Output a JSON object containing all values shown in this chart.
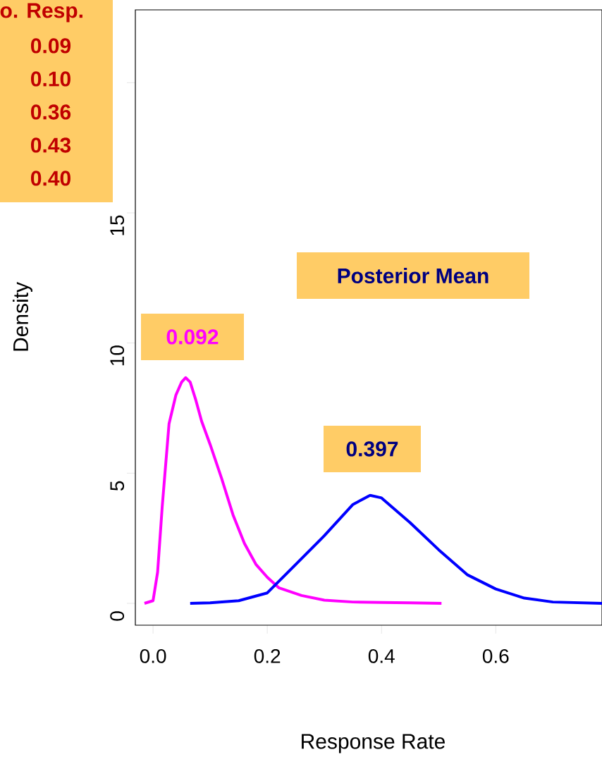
{
  "chart_data": {
    "type": "line",
    "xlabel": "Response Rate",
    "ylabel": "Density",
    "xlim": [
      -0.031,
      0.786
    ],
    "ylim": [
      -0.84,
      22.8
    ],
    "xticks": [
      {
        "value": 0,
        "label": "0.0"
      },
      0.2,
      0.4,
      0.6
    ],
    "yticks": [
      0,
      5,
      10,
      15,
      {
        "value": 20,
        "label": null
      }
    ],
    "series": [
      {
        "color": "#ff00ff",
        "x": [
          -0.015,
          0.0,
          0.008,
          0.016,
          0.028,
          0.04,
          0.05,
          0.057,
          0.065,
          0.075,
          0.085,
          0.1,
          0.12,
          0.14,
          0.16,
          0.18,
          0.2,
          0.22,
          0.26,
          0.3,
          0.35,
          0.4,
          0.45,
          0.505
        ],
        "values": [
          0,
          0.1,
          1.2,
          3.7,
          6.9,
          8.0,
          8.5,
          8.67,
          8.5,
          7.8,
          7.0,
          6.1,
          4.8,
          3.4,
          2.3,
          1.5,
          1.0,
          0.6,
          0.3,
          0.12,
          0.05,
          0.03,
          0.02,
          0
        ]
      },
      {
        "color": "#0000ff",
        "x": [
          0.065,
          0.1,
          0.15,
          0.2,
          0.25,
          0.3,
          0.35,
          0.38,
          0.4,
          0.45,
          0.5,
          0.55,
          0.6,
          0.65,
          0.7,
          0.786
        ],
        "values": [
          0,
          0.02,
          0.1,
          0.4,
          1.5,
          2.6,
          3.8,
          4.15,
          4.05,
          3.1,
          2.06,
          1.1,
          0.55,
          0.2,
          0.05,
          0
        ]
      }
    ],
    "annotations": [
      "o. Resp.",
      "0.09",
      "0.10",
      "0.36",
      "0.43",
      "0.40",
      "Posterior Mean",
      "0.092",
      "0.397"
    ],
    "line_style": "solid",
    "marker": "none",
    "grid": false
  }
}
